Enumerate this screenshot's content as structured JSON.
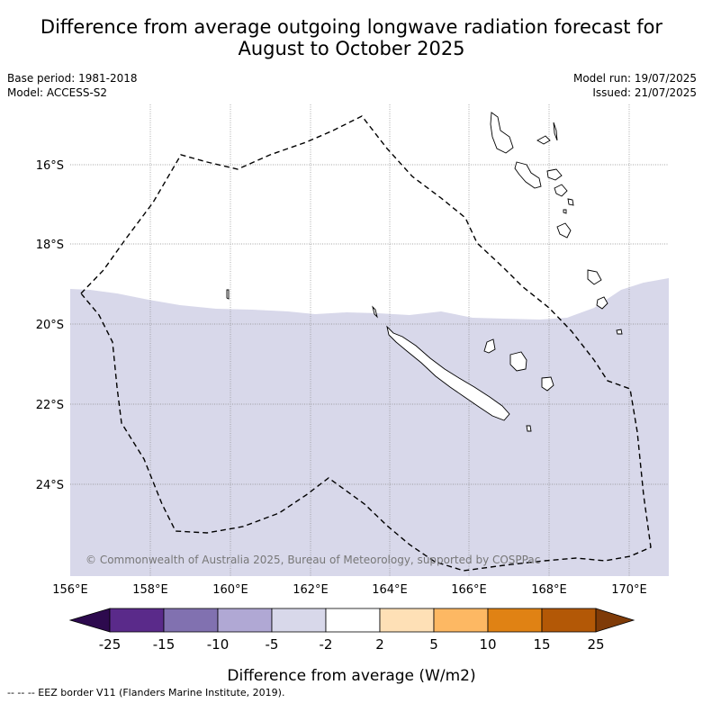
{
  "title_line1": "Difference from average outgoing longwave radiation forecast for",
  "title_line2": "August to October 2025",
  "meta": {
    "base_period": "Base period: 1981-2018",
    "model": "Model: ACCESS-S2",
    "model_run": "Model run: 19/07/2025",
    "issued": "Issued: 21/07/2025"
  },
  "map": {
    "lon_labels": [
      "156°E",
      "158°E",
      "160°E",
      "162°E",
      "164°E",
      "166°E",
      "168°E",
      "170°E"
    ],
    "lat_labels": [
      "16°S",
      "18°S",
      "20°S",
      "22°S",
      "24°S"
    ],
    "extent": {
      "lon_min": 156,
      "lon_max": 171,
      "lat_min": -26.2,
      "lat_max": -14.5
    },
    "fill_category": "-5 to -2",
    "fill_color": "#d8d8ea",
    "copyright": "© Commonwealth of Australia 2025, Bureau of Meteorology, supported by COSPPac"
  },
  "colorbar": {
    "ticks": [
      "-25",
      "-15",
      "-10",
      "-5",
      "-2",
      "2",
      "5",
      "10",
      "15",
      "25"
    ],
    "colors": [
      "#2d0a4e",
      "#5a2a8a",
      "#8171b0",
      "#b0a8d4",
      "#d8d8ea",
      "#ffffff",
      "#fee0b6",
      "#fdb863",
      "#e08214",
      "#b35806",
      "#7f3b08"
    ],
    "label": "Difference from average (W/m2)"
  },
  "footnote": "--  --  -- EEZ border V11 (Flanders Marine Institute, 2019)."
}
